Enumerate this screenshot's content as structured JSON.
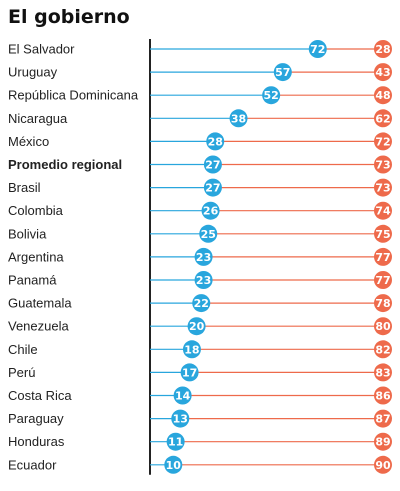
{
  "chart_data": {
    "type": "dumbbell",
    "title": "El gobierno",
    "highlight_category": "Promedio regional",
    "categories": [
      "El Salvador",
      "Uruguay",
      "República Dominicana",
      "Nicaragua",
      "México",
      "Promedio regional",
      "Brasil",
      "Colombia",
      "Bolivia",
      "Argentina",
      "Panamá",
      "Guatemala",
      "Venezuela",
      "Chile",
      "Perú",
      "Costa Rica",
      "Paraguay",
      "Honduras",
      "Ecuador"
    ],
    "series": [
      {
        "color": "#29a6dd",
        "values": [
          72,
          57,
          52,
          38,
          28,
          27,
          27,
          26,
          25,
          23,
          23,
          22,
          20,
          18,
          17,
          14,
          13,
          11,
          10
        ]
      },
      {
        "color": "#ee6a4b",
        "values": [
          28,
          43,
          48,
          62,
          72,
          73,
          73,
          74,
          75,
          77,
          77,
          78,
          80,
          82,
          83,
          86,
          87,
          89,
          90
        ]
      }
    ],
    "xlim": [
      0,
      100
    ]
  }
}
